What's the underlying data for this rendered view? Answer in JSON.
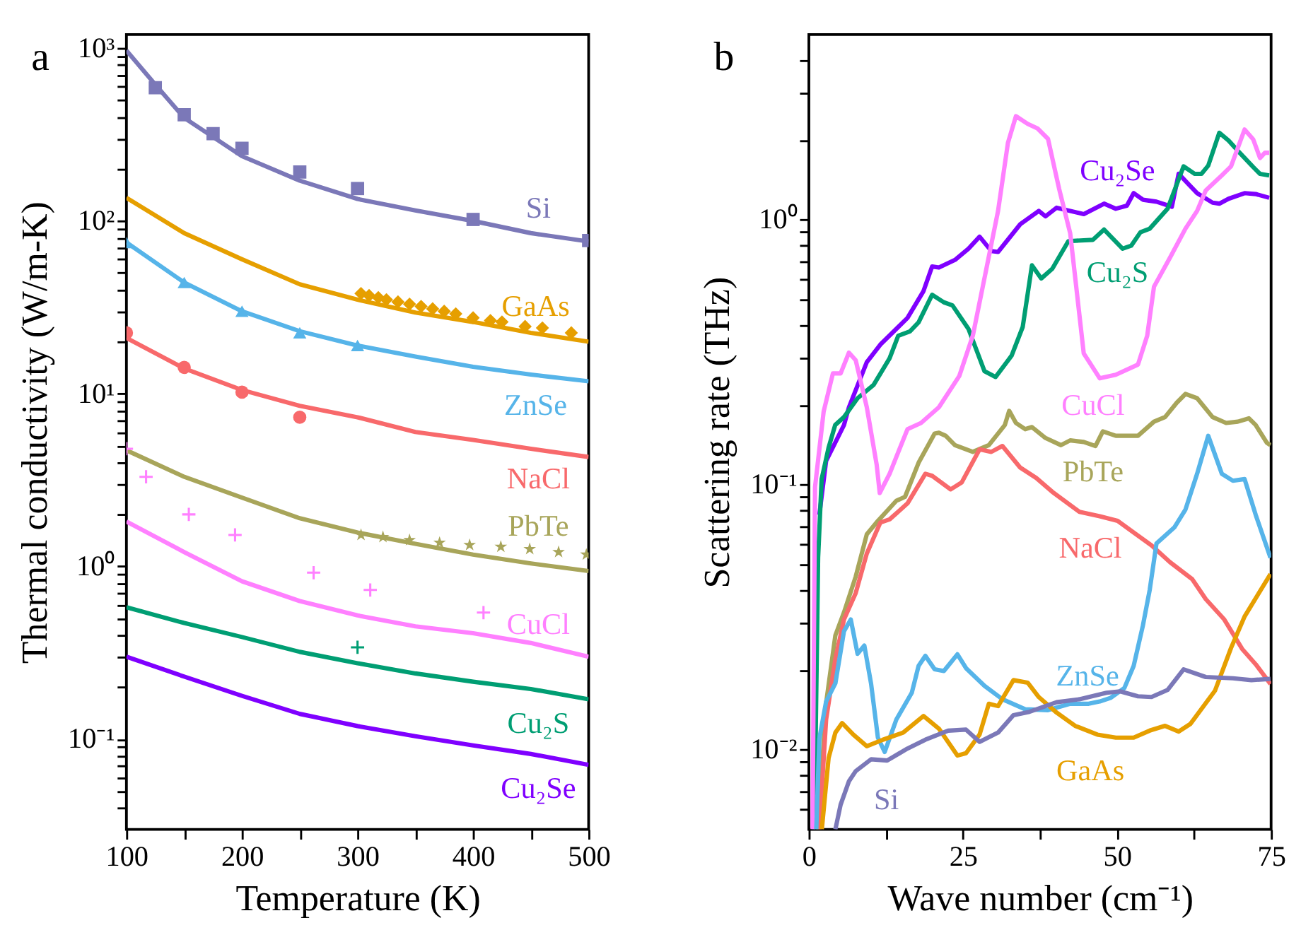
{
  "chart_data": [
    {
      "type": "line",
      "title": "a",
      "xlabel": "Temperature (K)",
      "ylabel": "Thermal conductivity (W/m-K)",
      "log": "y",
      "grid": false,
      "x": [
        100,
        150,
        200,
        250,
        300,
        350,
        400,
        450,
        500
      ],
      "xlim": [
        100,
        500
      ],
      "xticks": [
        100,
        {
          "value": 150,
          "label": null
        },
        200,
        {
          "value": 250,
          "label": null
        },
        300,
        {
          "value": 350,
          "label": null
        },
        400,
        {
          "value": 450,
          "label": null
        },
        500
      ],
      "ylim": [
        0.03,
        1200
      ],
      "yticks": [
        {
          "value": 0.04,
          "label": null
        },
        {
          "value": 0.05,
          "label": null
        },
        {
          "value": 0.06,
          "label": null
        },
        {
          "value": 0.07,
          "label": null
        },
        {
          "value": 0.08,
          "label": null
        },
        {
          "value": 0.09,
          "label": null
        },
        {
          "value": 0.1,
          "label": "10⁻¹"
        },
        {
          "value": 0.2,
          "label": null
        },
        {
          "value": 0.3,
          "label": null
        },
        {
          "value": 0.4,
          "label": null
        },
        {
          "value": 0.5,
          "label": null
        },
        {
          "value": 0.6,
          "label": null
        },
        {
          "value": 0.7,
          "label": null
        },
        {
          "value": 0.8,
          "label": null
        },
        {
          "value": 0.9,
          "label": null
        },
        {
          "value": 1,
          "label": "10⁰"
        },
        {
          "value": 2,
          "label": null
        },
        {
          "value": 3,
          "label": null
        },
        {
          "value": 4,
          "label": null
        },
        {
          "value": 5,
          "label": null
        },
        {
          "value": 6,
          "label": null
        },
        {
          "value": 7,
          "label": null
        },
        {
          "value": 8,
          "label": null
        },
        {
          "value": 9,
          "label": null
        },
        {
          "value": 10,
          "label": "10¹"
        },
        {
          "value": 20,
          "label": null
        },
        {
          "value": 30,
          "label": null
        },
        {
          "value": 40,
          "label": null
        },
        {
          "value": 50,
          "label": null
        },
        {
          "value": 60,
          "label": null
        },
        {
          "value": 70,
          "label": null
        },
        {
          "value": 80,
          "label": null
        },
        {
          "value": 90,
          "label": null
        },
        {
          "value": 100,
          "label": "10²"
        },
        {
          "value": 200,
          "label": null
        },
        {
          "value": 300,
          "label": null
        },
        {
          "value": 400,
          "label": null
        },
        {
          "value": 500,
          "label": null
        },
        {
          "value": 600,
          "label": null
        },
        {
          "value": 700,
          "label": null
        },
        {
          "value": 800,
          "label": null
        },
        {
          "value": 900,
          "label": null
        },
        {
          "value": 1000,
          "label": "10³"
        }
      ],
      "series": [
        {
          "name": "Si",
          "color": "#7b78b8",
          "x": [
            100,
            125,
            150,
            200,
            250,
            300,
            350,
            400,
            450,
            500
          ],
          "values": [
            970,
            616,
            395,
            237,
            171,
            134,
            115,
            100,
            85,
            76
          ]
        },
        {
          "name": "GaAs",
          "color": "#e69f00",
          "values": [
            136,
            85,
            60,
            43,
            35,
            29.5,
            26,
            22.5,
            20
          ]
        },
        {
          "name": "ZnSe",
          "color": "#56b4e9",
          "values": [
            75,
            44,
            30,
            23,
            19,
            16.4,
            14.3,
            12.9,
            11.8
          ]
        },
        {
          "name": "NaCl",
          "color": "#f8696b",
          "values": [
            21,
            14,
            10.5,
            8.5,
            7.3,
            6.0,
            5.4,
            4.8,
            4.3
          ]
        },
        {
          "name": "PbTe",
          "color": "#a8a55a",
          "values": [
            4.7,
            3.3,
            2.5,
            1.9,
            1.57,
            1.35,
            1.17,
            1.04,
            0.94
          ]
        },
        {
          "name": "CuCl",
          "color": "#ff80ff",
          "values": [
            1.82,
            1.21,
            0.82,
            0.63,
            0.52,
            0.45,
            0.41,
            0.36,
            0.3
          ]
        },
        {
          "name": "Cu₂S",
          "color": "#009e73",
          "values": [
            0.58,
            0.47,
            0.39,
            0.32,
            0.275,
            0.24,
            0.215,
            0.195,
            0.17
          ]
        },
        {
          "name": "Cu₂Se",
          "color": "#7f00ff",
          "values": [
            0.3,
            0.23,
            0.178,
            0.14,
            0.119,
            0.104,
            0.092,
            0.082,
            0.071
          ]
        },
        {
          "type": "scatter",
          "marker": "square",
          "color": "#7b78b8",
          "x": [
            125,
            150,
            175,
            200,
            250,
            300,
            400,
            500
          ],
          "values": [
            590,
            412,
            320,
            263,
            192,
            154,
            102,
            77
          ]
        },
        {
          "type": "scatter",
          "marker": "diamond",
          "color": "#e69f00",
          "x": [
            303,
            310,
            318,
            325,
            335,
            345,
            355,
            365,
            375,
            385,
            400,
            415,
            425,
            445,
            460,
            485
          ],
          "values": [
            38,
            37,
            36,
            35,
            34,
            33,
            32,
            31,
            30,
            29,
            27.5,
            26.5,
            26,
            24.5,
            24,
            22.5
          ]
        },
        {
          "type": "scatter",
          "marker": "triangle",
          "color": "#56b4e9",
          "x": [
            100,
            150,
            200,
            250,
            300
          ],
          "values": [
            75,
            44,
            30,
            22.5,
            19
          ]
        },
        {
          "type": "scatter",
          "marker": "circle",
          "color": "#f8696b",
          "x": [
            100,
            150,
            200,
            250
          ],
          "values": [
            22.5,
            14.2,
            10.2,
            7.3
          ]
        },
        {
          "type": "scatter",
          "marker": "star",
          "color": "#a8a55a",
          "x": [
            303,
            322,
            345,
            371,
            397,
            424,
            449,
            474,
            498
          ],
          "values": [
            1.52,
            1.48,
            1.42,
            1.37,
            1.33,
            1.3,
            1.26,
            1.21,
            1.17
          ]
        },
        {
          "type": "scatter",
          "marker": "cross",
          "color": "#ff80ff",
          "x": [
            100,
            117,
            154,
            194,
            262,
            311,
            409
          ],
          "values": [
            4.8,
            3.3,
            2.0,
            1.52,
            0.92,
            0.73,
            0.54
          ]
        },
        {
          "type": "scatter",
          "marker": "cross",
          "color": "#009e73",
          "x": [
            300
          ],
          "values": [
            0.34
          ]
        }
      ]
    },
    {
      "type": "line",
      "title": "b",
      "xlabel": "Wave number (cm⁻¹)",
      "ylabel": "Scattering rate (THz)",
      "log": "y",
      "grid": false,
      "xlim": [
        0,
        75
      ],
      "xticks": [
        0,
        {
          "value": 12.5,
          "label": null
        },
        25,
        {
          "value": 37.5,
          "label": null
        },
        50,
        {
          "value": 62.5,
          "label": null
        },
        75
      ],
      "ylim": [
        0.005,
        5
      ],
      "yticks": [
        {
          "value": 0.006,
          "label": null
        },
        {
          "value": 0.007,
          "label": null
        },
        {
          "value": 0.008,
          "label": null
        },
        {
          "value": 0.009,
          "label": null
        },
        {
          "value": 0.01,
          "label": "10⁻²"
        },
        {
          "value": 0.02,
          "label": null
        },
        {
          "value": 0.03,
          "label": null
        },
        {
          "value": 0.04,
          "label": null
        },
        {
          "value": 0.05,
          "label": null
        },
        {
          "value": 0.06,
          "label": null
        },
        {
          "value": 0.07,
          "label": null
        },
        {
          "value": 0.08,
          "label": null
        },
        {
          "value": 0.09,
          "label": null
        },
        {
          "value": 0.1,
          "label": "10⁻¹"
        },
        {
          "value": 0.2,
          "label": null
        },
        {
          "value": 0.3,
          "label": null
        },
        {
          "value": 0.4,
          "label": null
        },
        {
          "value": 0.5,
          "label": null
        },
        {
          "value": 0.6,
          "label": null
        },
        {
          "value": 0.7,
          "label": null
        },
        {
          "value": 0.8,
          "label": null
        },
        {
          "value": 0.9,
          "label": null
        },
        {
          "value": 1,
          "label": "10⁰"
        },
        {
          "value": 2,
          "label": null
        },
        {
          "value": 3,
          "label": null
        },
        {
          "value": 4,
          "label": null
        }
      ],
      "series": [
        {
          "name": "Cu₂Se",
          "color": "#7f00ff",
          "x": [
            1.7,
            2.8,
            5.7,
            6.5,
            9.4,
            11.6,
            16.0,
            18.6,
            20.0,
            21.1,
            23.7,
            25.9,
            27.7,
            29.6,
            30.7,
            34.3,
            37.3,
            38.4,
            40.2,
            44.6,
            47.9,
            49.8,
            51.6,
            52.7,
            54.2,
            56.4,
            58.9,
            60.0,
            63.0,
            65.5,
            66.6,
            68.1,
            70.7,
            72.5,
            74.7
          ],
          "values": [
            0.077,
            0.123,
            0.168,
            0.196,
            0.29,
            0.338,
            0.426,
            0.538,
            0.666,
            0.66,
            0.705,
            0.778,
            0.863,
            0.762,
            0.756,
            0.962,
            1.08,
            1.03,
            1.11,
            1.05,
            1.15,
            1.1,
            1.13,
            1.26,
            1.19,
            1.17,
            1.12,
            1.49,
            1.26,
            1.16,
            1.15,
            1.2,
            1.26,
            1.25,
            1.21
          ]
        },
        {
          "name": "Cu₂S",
          "color": "#009e73",
          "x": [
            0.9,
            1.5,
            2.07,
            3.2,
            4.27,
            5.7,
            7.9,
            10.5,
            13.1,
            14.5,
            16.4,
            17.8,
            20.0,
            21.9,
            23.3,
            25.9,
            28.5,
            30.3,
            32.9,
            34.7,
            36.2,
            37.7,
            39.5,
            42.1,
            46.1,
            47.9,
            50.9,
            52.3,
            53.8,
            55.3,
            58.2,
            60.8,
            62.6,
            63.7,
            64.8,
            66.6,
            68.1,
            69.9,
            72.1,
            73.2,
            74.7
          ],
          "values": [
            0.005,
            0.053,
            0.105,
            0.138,
            0.168,
            0.18,
            0.212,
            0.238,
            0.3,
            0.365,
            0.379,
            0.41,
            0.521,
            0.488,
            0.475,
            0.387,
            0.268,
            0.255,
            0.307,
            0.394,
            0.673,
            0.6,
            0.653,
            0.83,
            0.84,
            0.918,
            0.778,
            0.798,
            0.897,
            0.925,
            1.1,
            1.59,
            1.49,
            1.49,
            1.6,
            2.13,
            1.99,
            1.79,
            1.58,
            1.49,
            1.47
          ]
        },
        {
          "name": "CuCl",
          "color": "#ff80ff",
          "x": [
            0.6,
            1.0,
            2.4,
            3.9,
            5.15,
            6.5,
            7.6,
            9.4,
            11.0,
            11.5,
            13.1,
            16.0,
            18.2,
            21.1,
            24.4,
            26.6,
            28.8,
            30.7,
            32.3,
            33.6,
            35.5,
            37.1,
            38.8,
            40.6,
            42.4,
            44.6,
            47.2,
            49.8,
            53.4,
            54.9,
            56.0,
            58.6,
            61.1,
            63.0,
            64.4,
            67.0,
            68.5,
            70.7,
            72.1,
            73.2,
            74.0,
            74.7
          ],
          "values": [
            0.005,
            0.098,
            0.189,
            0.263,
            0.263,
            0.315,
            0.295,
            0.196,
            0.119,
            0.093,
            0.11,
            0.162,
            0.171,
            0.196,
            0.257,
            0.365,
            0.653,
            1.08,
            1.95,
            2.46,
            2.3,
            2.21,
            2.02,
            1.31,
            0.89,
            0.313,
            0.252,
            0.26,
            0.284,
            0.365,
            0.559,
            0.72,
            0.925,
            1.08,
            1.29,
            1.47,
            1.59,
            2.19,
            2.01,
            1.71,
            1.79,
            1.79
          ]
        },
        {
          "name": "PbTe",
          "color": "#a8a55a",
          "x": [
            1.5,
            2.8,
            4.3,
            5.7,
            7.6,
            9.4,
            11.2,
            14.2,
            15.6,
            17.8,
            20.4,
            21.1,
            22.2,
            23.7,
            26.6,
            29.2,
            31.8,
            32.5,
            33.6,
            35.1,
            36.2,
            38.4,
            40.9,
            42.4,
            44.6,
            46.5,
            47.7,
            49.8,
            53.4,
            56.0,
            57.8,
            59.7,
            61.1,
            63.0,
            65.5,
            67.7,
            69.6,
            71.4,
            72.5,
            74.3,
            74.9
          ],
          "values": [
            0.005,
            0.015,
            0.027,
            0.033,
            0.045,
            0.065,
            0.073,
            0.087,
            0.09,
            0.121,
            0.156,
            0.157,
            0.153,
            0.141,
            0.133,
            0.141,
            0.168,
            0.19,
            0.171,
            0.162,
            0.165,
            0.15,
            0.141,
            0.147,
            0.145,
            0.14,
            0.159,
            0.153,
            0.153,
            0.173,
            0.18,
            0.204,
            0.22,
            0.212,
            0.18,
            0.171,
            0.173,
            0.178,
            0.168,
            0.144,
            0.141
          ]
        },
        {
          "name": "NaCl",
          "color": "#f8696b",
          "x": [
            1.7,
            2.8,
            4.3,
            5.7,
            7.6,
            9.4,
            11.6,
            13.1,
            16.0,
            18.9,
            20.0,
            23.0,
            24.8,
            27.7,
            29.6,
            31.4,
            34.3,
            36.9,
            39.5,
            43.9,
            47.2,
            50.1,
            52.7,
            55.6,
            58.6,
            62.2,
            64.4,
            67.4,
            70.3,
            72.5,
            74.9
          ],
          "values": [
            0.005,
            0.013,
            0.022,
            0.031,
            0.039,
            0.055,
            0.072,
            0.074,
            0.085,
            0.11,
            0.108,
            0.096,
            0.102,
            0.136,
            0.133,
            0.14,
            0.116,
            0.106,
            0.094,
            0.079,
            0.076,
            0.073,
            0.066,
            0.059,
            0.051,
            0.044,
            0.037,
            0.031,
            0.024,
            0.021,
            0.0177
          ]
        },
        {
          "name": "ZnSe",
          "color": "#56b4e9",
          "x": [
            1.2,
            1.7,
            2.8,
            4.3,
            5.7,
            6.8,
            7.9,
            9.0,
            10.1,
            11.2,
            12.3,
            14.2,
            16.7,
            17.8,
            18.9,
            20.4,
            21.9,
            24.1,
            25.5,
            28.5,
            31.4,
            35.1,
            38.8,
            42.4,
            45.4,
            47.2,
            49.0,
            51.2,
            52.7,
            54.2,
            55.3,
            56.4,
            59.3,
            61.1,
            63.0,
            64.8,
            67.0,
            68.8,
            70.7,
            72.5,
            74.9
          ],
          "values": [
            0.005,
            0.011,
            0.0152,
            0.0178,
            0.028,
            0.031,
            0.023,
            0.0247,
            0.0177,
            0.0111,
            0.0098,
            0.013,
            0.0164,
            0.0207,
            0.0226,
            0.0201,
            0.0198,
            0.0229,
            0.0203,
            0.0174,
            0.0155,
            0.0142,
            0.0141,
            0.0149,
            0.0149,
            0.0152,
            0.0157,
            0.0171,
            0.0207,
            0.0294,
            0.04,
            0.06,
            0.069,
            0.0805,
            0.11,
            0.153,
            0.11,
            0.1035,
            0.105,
            0.077,
            0.053
          ]
        },
        {
          "name": "GaAs",
          "color": "#e69f00",
          "x": [
            2.1,
            3.2,
            4.3,
            5.4,
            7.2,
            9.4,
            12.0,
            15.3,
            18.6,
            21.1,
            24.1,
            25.5,
            27.7,
            29.2,
            30.7,
            33.2,
            35.5,
            37.3,
            40.2,
            43.2,
            46.8,
            49.8,
            52.7,
            55.3,
            57.8,
            60.0,
            61.9,
            65.9,
            68.5,
            70.7,
            74.9
          ],
          "values": [
            0.005,
            0.0093,
            0.0116,
            0.0126,
            0.0114,
            0.0103,
            0.0109,
            0.0116,
            0.0134,
            0.012,
            0.0095,
            0.0097,
            0.0114,
            0.0149,
            0.0146,
            0.0183,
            0.0179,
            0.0158,
            0.0138,
            0.0123,
            0.0114,
            0.0111,
            0.0111,
            0.0118,
            0.0123,
            0.0117,
            0.0125,
            0.0167,
            0.0242,
            0.0318,
            0.046
          ]
        },
        {
          "name": "Si",
          "color": "#7b78b8",
          "x": [
            4.3,
            5.15,
            6.5,
            7.6,
            10.1,
            12.7,
            16.0,
            18.9,
            22.6,
            25.5,
            27.7,
            30.7,
            33.2,
            35.8,
            40.2,
            43.9,
            48.3,
            50.5,
            53.4,
            55.6,
            58.2,
            60.8,
            64.4,
            68.8,
            71.8,
            74.9
          ],
          "values": [
            0.005,
            0.0062,
            0.0076,
            0.0083,
            0.0092,
            0.0091,
            0.0101,
            0.0109,
            0.0118,
            0.0119,
            0.0107,
            0.0116,
            0.0135,
            0.0139,
            0.0151,
            0.0155,
            0.0164,
            0.0166,
            0.0159,
            0.0158,
            0.0168,
            0.0201,
            0.0188,
            0.0186,
            0.0183,
            0.0185
          ]
        }
      ]
    }
  ]
}
